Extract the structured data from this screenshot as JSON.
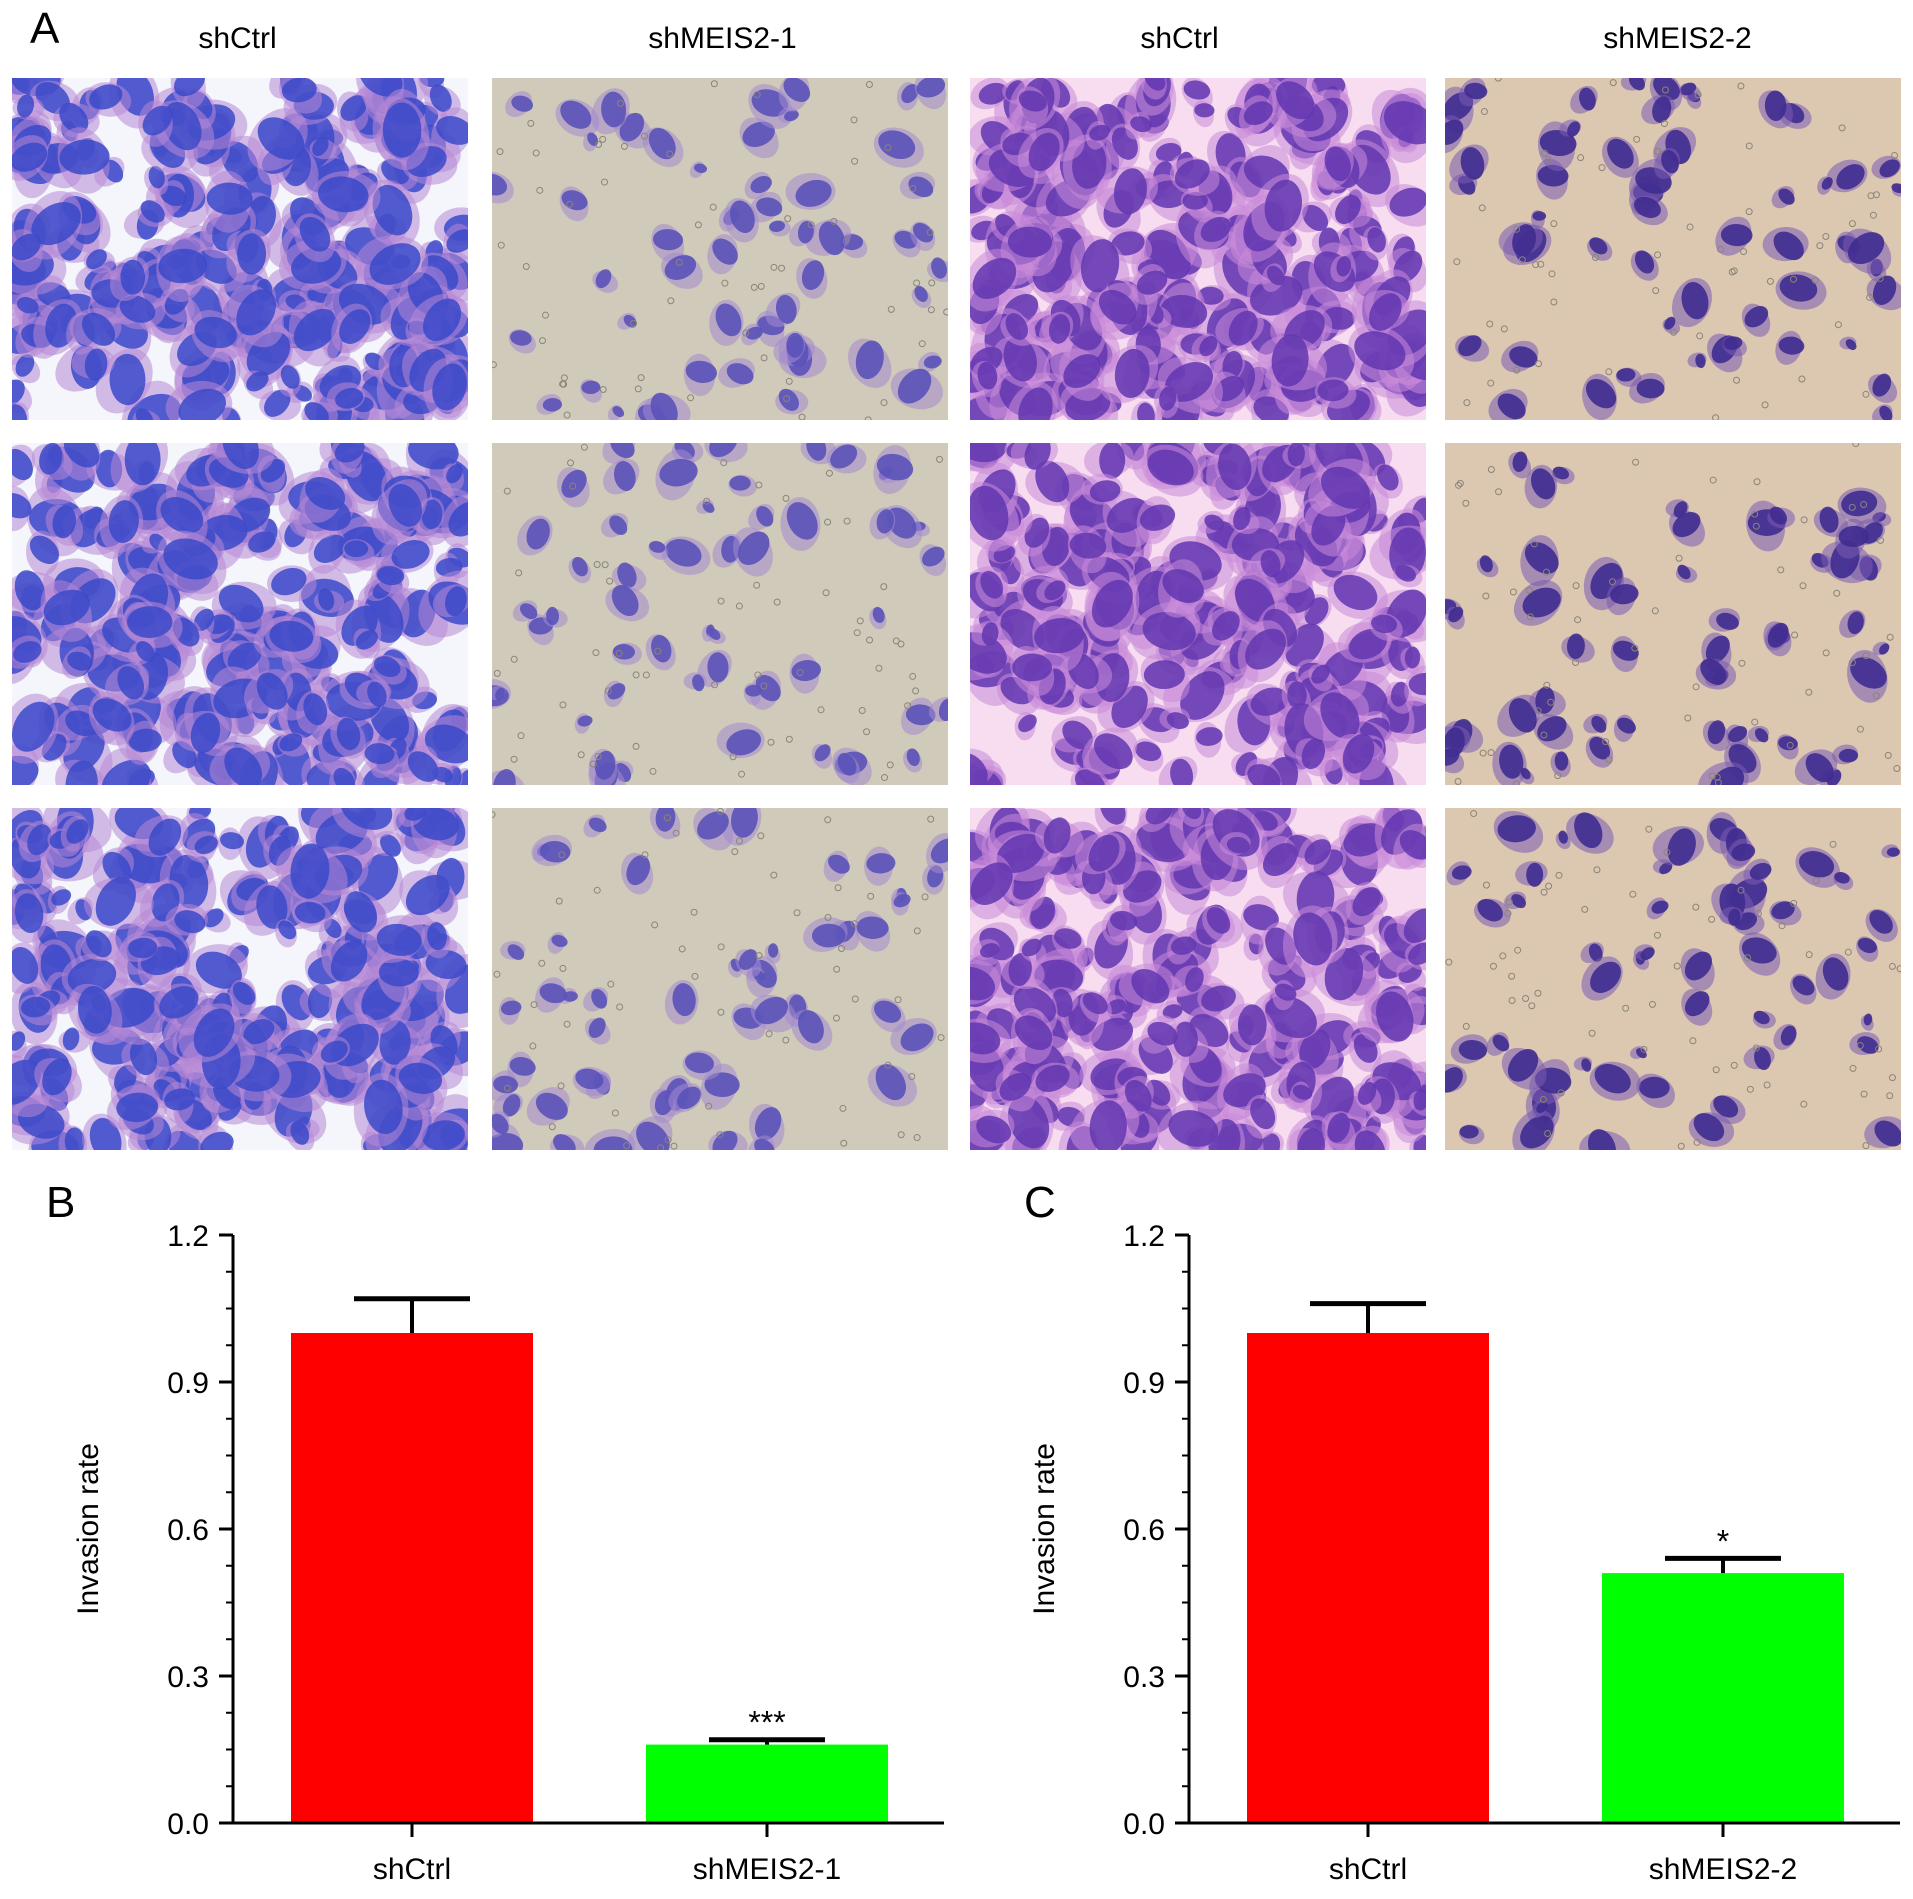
{
  "panels": {
    "a": {
      "letter": "A",
      "column_labels": [
        "shCtrl",
        "shMEIS2-1",
        "shCtrl",
        "shMEIS2-2"
      ],
      "rows": 3
    },
    "b": {
      "letter": "B"
    },
    "c": {
      "letter": "C"
    }
  },
  "micrographs": [
    {
      "style": "dense",
      "background": "#f4f6fb",
      "cell_color": "#3b49c9",
      "halo_color": "#b689d6"
    },
    {
      "style": "sparse",
      "background": "#cfcab9",
      "cell_color": "#5a52b8",
      "halo_color": "#a48bd0"
    },
    {
      "style": "dense",
      "background": "#f7ddef",
      "cell_color": "#6236b0",
      "halo_color": "#c98ad8"
    },
    {
      "style": "sparse",
      "background": "#dcc7b1",
      "cell_color": "#3f2b8f",
      "halo_color": "#7a5bb2"
    }
  ],
  "chart_data": [
    {
      "type": "bar",
      "categories": [
        "shCtrl",
        "shMEIS2-1"
      ],
      "values": [
        1.0,
        0.16
      ],
      "errors": [
        0.07,
        0.01
      ],
      "significance": [
        "",
        "***"
      ],
      "colors": [
        "#ff0000",
        "#00ff00"
      ],
      "ylabel": "Invasion rate",
      "ylim": [
        0.0,
        1.2
      ],
      "yticks": [
        "0.0",
        "0.3",
        "0.6",
        "0.9",
        "1.2"
      ],
      "ytick_values": [
        0.0,
        0.3,
        0.6,
        0.9,
        1.2
      ]
    },
    {
      "type": "bar",
      "categories": [
        "shCtrl",
        "shMEIS2-2"
      ],
      "values": [
        1.0,
        0.51
      ],
      "errors": [
        0.06,
        0.03
      ],
      "significance": [
        "",
        "*"
      ],
      "colors": [
        "#ff0000",
        "#00ff00"
      ],
      "ylabel": "Invasion rate",
      "ylim": [
        0.0,
        1.2
      ],
      "yticks": [
        "0.0",
        "0.3",
        "0.6",
        "0.9",
        "1.2"
      ],
      "ytick_values": [
        0.0,
        0.3,
        0.6,
        0.9,
        1.2
      ]
    }
  ]
}
